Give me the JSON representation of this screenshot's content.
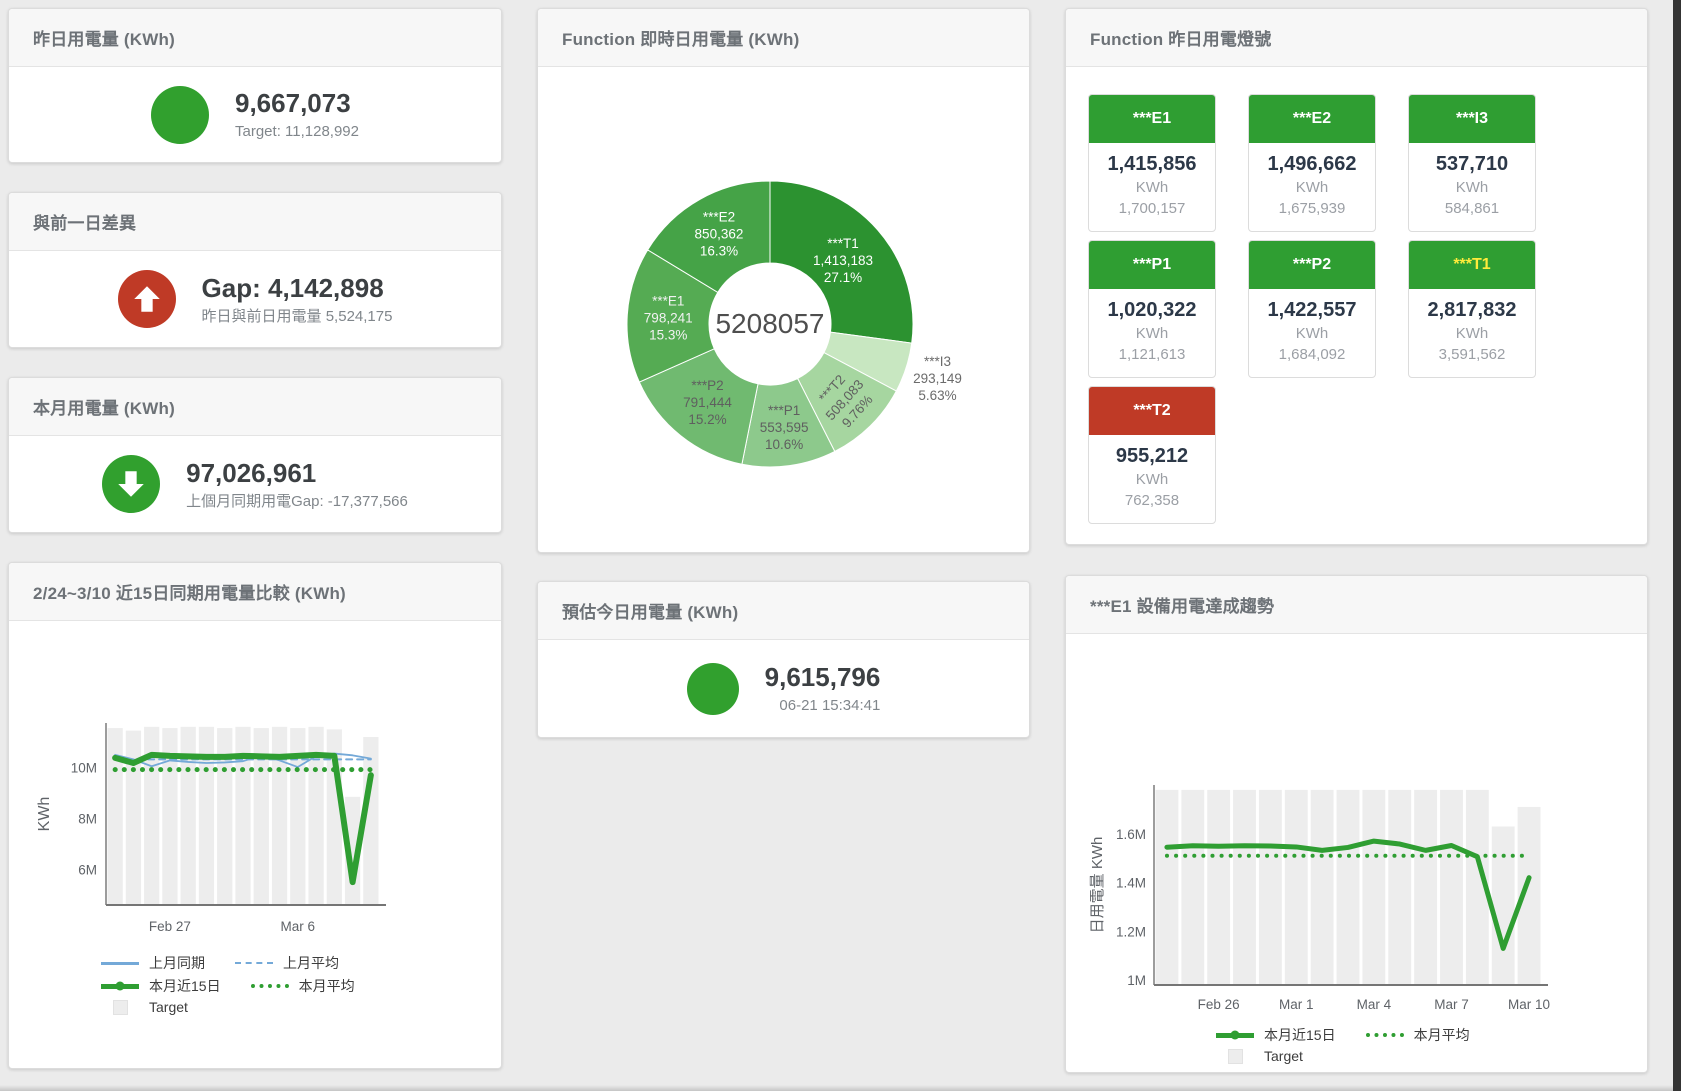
{
  "page": {
    "background": "#ebebeb",
    "accent_green": "#31a02e",
    "accent_red": "#bf3a26"
  },
  "cards": {
    "yesterday": {
      "title": "昨日用電量 (KWh)",
      "value": "9,667,073",
      "subtitle": "Target: 11,128,992",
      "status_color": "#31a02e"
    },
    "gap": {
      "title": "與前一日差異",
      "value": "Gap: 4,142,898",
      "subtitle": "昨日與前日用電量 5,524,175",
      "status_color": "#bf3a26"
    },
    "month": {
      "title": "本月用電量 (KWh)",
      "value": "97,026,961",
      "subtitle": "上個月同期用電Gap: -17,377,566",
      "status_color": "#31a02e"
    },
    "realtime": {
      "title": "Function 即時日用電量 (KWh)"
    },
    "lights": {
      "title": "Function 昨日用電燈號",
      "unit": "KWh",
      "tiles": [
        {
          "name": "***E1",
          "value": "1,415,856",
          "target": "1,700,157",
          "header_color": "#2f9e32",
          "label_color": "#ffffff"
        },
        {
          "name": "***E2",
          "value": "1,496,662",
          "target": "1,675,939",
          "header_color": "#2f9e32",
          "label_color": "#ffffff"
        },
        {
          "name": "***I3",
          "value": "537,710",
          "target": "584,861",
          "header_color": "#2f9e32",
          "label_color": "#ffffff"
        },
        {
          "name": "***P1",
          "value": "1,020,322",
          "target": "1,121,613",
          "header_color": "#2f9e32",
          "label_color": "#ffffff"
        },
        {
          "name": "***P2",
          "value": "1,422,557",
          "target": "1,684,092",
          "header_color": "#2f9e32",
          "label_color": "#ffffff"
        },
        {
          "name": "***T1",
          "value": "2,817,832",
          "target": "3,591,562",
          "header_color": "#2f9e32",
          "label_color": "#ffeb3b"
        },
        {
          "name": "***T2",
          "value": "955,212",
          "target": "762,358",
          "header_color": "#bf3a26",
          "label_color": "#ffffff"
        }
      ]
    },
    "compare": {
      "title": "2/24~3/10 近15日同期用電量比較 (KWh)"
    },
    "estimate": {
      "title": "預估今日用電量 (KWh)",
      "value": "9,615,796",
      "subtitle": "06-21 15:34:41",
      "status_color": "#31a02e"
    },
    "trend": {
      "title": "***E1 設備用電達成趨勢"
    }
  },
  "chart_data": [
    {
      "type": "pie",
      "title": "Function 即時日用電量 (KWh)",
      "center_total": "5208057",
      "legend_position": "none",
      "segments": [
        {
          "name": "***T1",
          "value": 1413183,
          "display": "1,413,183",
          "pct": "27.1%",
          "color": "#2c9230",
          "label_color": "#ffffff",
          "label_r": 97
        },
        {
          "name": "***I3",
          "value": 293149,
          "display": "293,149",
          "pct": "5.63%",
          "color": "#c8e7c1",
          "label_color": "#6b6b6b",
          "outside": true
        },
        {
          "name": "***T2",
          "value": 508083,
          "display": "508,083",
          "pct": "9.76%",
          "color": "#a6d6a0",
          "label_color": "#5f5f5f",
          "label_r": 106,
          "rotate": -48
        },
        {
          "name": "***P1",
          "value": 553595,
          "display": "553,595",
          "pct": "10.6%",
          "color": "#8dc98c",
          "label_color": "#5f5f5f",
          "label_r": 104
        },
        {
          "name": "***P2",
          "value": 791444,
          "display": "791,444",
          "pct": "15.2%",
          "color": "#70ba70",
          "label_color": "#5f5f5f",
          "label_r": 100
        },
        {
          "name": "***E1",
          "value": 798241,
          "display": "798,241",
          "pct": "15.3%",
          "color": "#55ab53",
          "label_color": "#f2f2f2",
          "label_r": 102
        },
        {
          "name": "***E2",
          "value": 850362,
          "display": "850,362",
          "pct": "16.3%",
          "color": "#45a347",
          "label_color": "#ffffff",
          "label_r": 104
        }
      ]
    },
    {
      "type": "line+bar",
      "title": "2/24~3/10 近15日同期用電量比較 (KWh)",
      "ylabel": "KWh",
      "ylim": [
        4.6,
        11.75
      ],
      "grid": false,
      "legend_position": "bottom",
      "yticks": [
        {
          "v": 6,
          "label": "6M"
        },
        {
          "v": 8,
          "label": "8M"
        },
        {
          "v": 10,
          "label": "10M"
        }
      ],
      "categories": [
        "Feb 24",
        "Feb 25",
        "Feb 26",
        "Feb 27",
        "Feb 28",
        "Mar 1",
        "Mar 2",
        "Mar 3",
        "Mar 4",
        "Mar 5",
        "Mar 6",
        "Mar 7",
        "Mar 8",
        "Mar 9",
        "Mar 10"
      ],
      "xticks": [
        {
          "i": 3,
          "label": "Feb 27"
        },
        {
          "i": 10,
          "label": "Mar 6"
        }
      ],
      "series": [
        {
          "name": "Target",
          "type": "bar",
          "color": "#ededed",
          "values": [
            11.55,
            11.45,
            11.6,
            11.55,
            11.6,
            11.6,
            11.55,
            11.6,
            11.55,
            11.6,
            11.55,
            11.6,
            11.5,
            8.85,
            11.2
          ]
        },
        {
          "name": "上月同期",
          "type": "line",
          "style": "solid",
          "color": "#74a9d8",
          "width": 1.8,
          "values": [
            10.5,
            10.32,
            10.05,
            10.28,
            10.22,
            10.18,
            10.2,
            10.25,
            10.48,
            10.28,
            10.02,
            10.45,
            10.55,
            10.48,
            10.35
          ]
        },
        {
          "name": "上月平均",
          "type": "line",
          "style": "dashed",
          "color": "#74a9d8",
          "width": 2,
          "values": [
            10.32,
            10.32,
            10.32,
            10.32,
            10.32,
            10.32,
            10.32,
            10.32,
            10.32,
            10.32,
            10.32,
            10.32,
            10.32,
            10.32,
            10.32
          ]
        },
        {
          "name": "本月近15日",
          "type": "line",
          "style": "solid",
          "color": "#2f9e32",
          "width": 6,
          "values": [
            10.38,
            10.18,
            10.5,
            10.46,
            10.44,
            10.42,
            10.42,
            10.46,
            10.44,
            10.42,
            10.46,
            10.5,
            10.46,
            5.5,
            9.7
          ]
        },
        {
          "name": "本月平均",
          "type": "line",
          "style": "dotted",
          "color": "#2f9e32",
          "width": 5,
          "values": [
            9.92,
            9.92,
            9.92,
            9.92,
            9.92,
            9.92,
            9.92,
            9.92,
            9.92,
            9.92,
            9.92,
            9.92,
            9.92,
            9.92,
            9.92
          ]
        }
      ],
      "legend": [
        [
          {
            "label": "上月同期",
            "marker": "line",
            "color": "#74a9d8"
          },
          {
            "label": "上月平均",
            "marker": "dashed",
            "color": "#74a9d8"
          }
        ],
        [
          {
            "label": "本月近15日",
            "marker": "thick",
            "color": "#2f9e32"
          },
          {
            "label": "本月平均",
            "marker": "dotted",
            "color": "#2f9e32"
          }
        ],
        [
          {
            "label": "Target",
            "marker": "square",
            "color": "#ededed"
          }
        ]
      ]
    },
    {
      "type": "line+bar",
      "title": "***E1 設備用電達成趨勢",
      "ylabel": "日用電量 KWh",
      "ylim": [
        0.98,
        1.8
      ],
      "grid": false,
      "legend_position": "bottom",
      "yticks": [
        {
          "v": 1,
          "label": "1M"
        },
        {
          "v": 1.2,
          "label": "1.2M"
        },
        {
          "v": 1.4,
          "label": "1.4M"
        },
        {
          "v": 1.6,
          "label": "1.6M"
        }
      ],
      "categories": [
        "Feb 24",
        "Feb 25",
        "Feb 26",
        "Feb 27",
        "Feb 28",
        "Mar 1",
        "Mar 2",
        "Mar 3",
        "Mar 4",
        "Mar 5",
        "Mar 6",
        "Mar 7",
        "Mar 8",
        "Mar 9",
        "Mar 10"
      ],
      "xticks": [
        {
          "i": 2,
          "label": "Feb 26"
        },
        {
          "i": 5,
          "label": "Mar 1"
        },
        {
          "i": 8,
          "label": "Mar 4"
        },
        {
          "i": 11,
          "label": "Mar 7"
        },
        {
          "i": 14,
          "label": "Mar 10"
        }
      ],
      "series": [
        {
          "name": "Target",
          "type": "bar",
          "color": "#ededed",
          "values": [
            1.78,
            1.78,
            1.78,
            1.78,
            1.78,
            1.78,
            1.78,
            1.78,
            1.78,
            1.78,
            1.78,
            1.78,
            1.78,
            1.63,
            1.71
          ]
        },
        {
          "name": "本月近15日",
          "type": "line",
          "style": "solid",
          "color": "#2f9e32",
          "width": 5,
          "values": [
            1.545,
            1.551,
            1.549,
            1.551,
            1.55,
            1.546,
            1.532,
            1.544,
            1.57,
            1.558,
            1.532,
            1.552,
            1.506,
            1.13,
            1.42
          ]
        },
        {
          "name": "本月平均",
          "type": "line",
          "style": "dotted",
          "color": "#2f9e32",
          "width": 4,
          "values": [
            1.51,
            1.51,
            1.51,
            1.51,
            1.51,
            1.51,
            1.51,
            1.51,
            1.51,
            1.51,
            1.51,
            1.51,
            1.51,
            1.51,
            1.51
          ]
        }
      ],
      "legend": [
        [
          {
            "label": "本月近15日",
            "marker": "thick",
            "color": "#2f9e32"
          },
          {
            "label": "本月平均",
            "marker": "dotted",
            "color": "#2f9e32"
          }
        ],
        [
          {
            "label": "Target",
            "marker": "square",
            "color": "#ededed"
          }
        ]
      ]
    }
  ]
}
